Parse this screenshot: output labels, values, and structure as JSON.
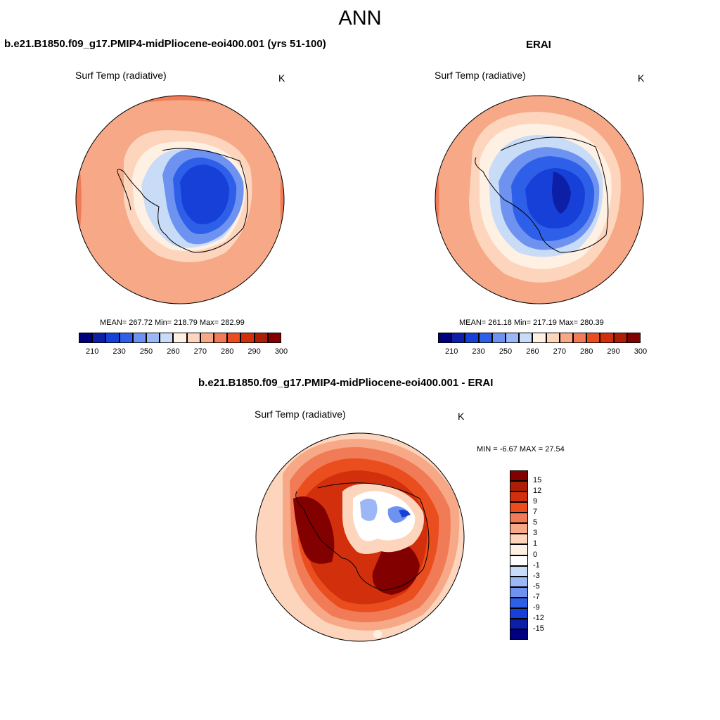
{
  "title": "ANN",
  "panels": {
    "model": {
      "title": "b.e21.B1850.f09_g17.PMIP4-midPliocene-eoi400.001 (yrs 51-100)",
      "variable": "Surf Temp (radiative)",
      "units": "K",
      "stats": "MEAN= 267.72  Min= 218.79  Max= 282.99"
    },
    "obs": {
      "title": "ERAI",
      "variable": "Surf Temp (radiative)",
      "units": "K",
      "stats": "MEAN= 261.18  Min= 217.19  Max= 280.39"
    },
    "diff": {
      "title": "b.e21.B1850.f09_g17.PMIP4-midPliocene-eoi400.001 - ERAI",
      "variable": "Surf Temp (radiative)",
      "units": "K",
      "stats": "MIN =  -6.67 MAX =  27.54"
    }
  },
  "colorbars": {
    "absolute": {
      "labels": [
        "210",
        "230",
        "250",
        "260",
        "270",
        "280",
        "290",
        "300"
      ],
      "colors": [
        "#00007f",
        "#0d1fa6",
        "#1740d8",
        "#2e5fe8",
        "#6e92f0",
        "#9bb7f5",
        "#c9dcf7",
        "#fff0e4",
        "#fdd5bd",
        "#f7a987",
        "#f27b57",
        "#ea4e1e",
        "#d22f0c",
        "#ad1e06",
        "#830000"
      ]
    },
    "difference": {
      "labels": [
        "15",
        "12",
        "9",
        "7",
        "5",
        "3",
        "1",
        "0",
        "-1",
        "-3",
        "-5",
        "-7",
        "-9",
        "-12",
        "-15"
      ],
      "colors": [
        "#830000",
        "#ad1e06",
        "#d22f0c",
        "#ea4e1e",
        "#f27b57",
        "#f7a987",
        "#fdd5bd",
        "#fff0e4",
        "#ffffff",
        "#c9dcf7",
        "#9bb7f5",
        "#6e92f0",
        "#2e5fe8",
        "#1740d8",
        "#0d1fa6",
        "#00007f"
      ]
    }
  }
}
